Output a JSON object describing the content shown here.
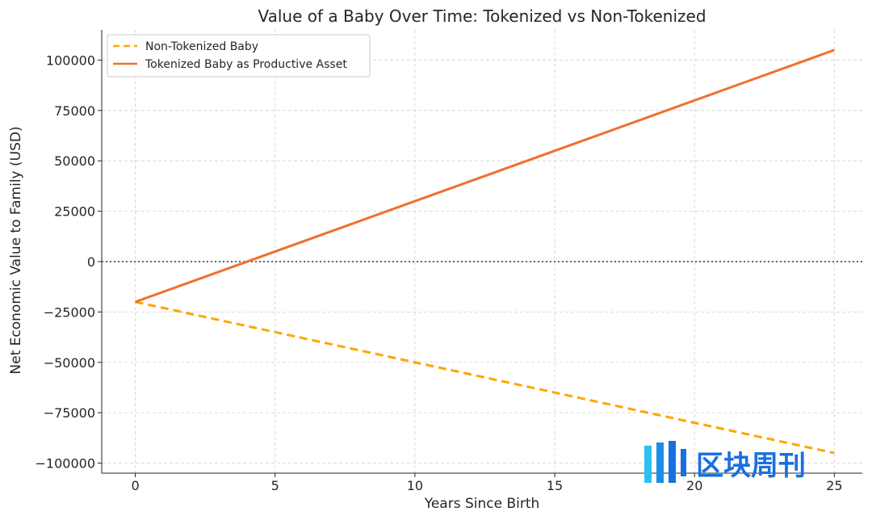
{
  "chart_data": {
    "type": "line",
    "title": "Value of a Baby Over Time: Tokenized vs Non-Tokenized",
    "xlabel": "Years Since Birth",
    "ylabel": "Net Economic Value to Family (USD)",
    "xlim": [
      -1.2,
      26.0
    ],
    "ylim": [
      -105000,
      115000
    ],
    "xticks": [
      0,
      5,
      10,
      15,
      20,
      25
    ],
    "yticks": [
      -100000,
      -75000,
      -50000,
      -25000,
      0,
      25000,
      50000,
      75000,
      100000
    ],
    "grid": true,
    "legend_position": "top-left",
    "reference_line": {
      "y": 0,
      "style": "dotted",
      "color": "#555555"
    },
    "series": [
      {
        "name": "Non-Tokenized Baby",
        "style": "dashed",
        "color": "#FFA500",
        "x": [
          0,
          25
        ],
        "y": [
          -20000,
          -95000
        ]
      },
      {
        "name": "Tokenized Baby as Productive Asset",
        "style": "solid",
        "color": "#F07030",
        "x": [
          0,
          25
        ],
        "y": [
          -20000,
          105000
        ]
      }
    ]
  },
  "watermark": {
    "text": "区块周刊",
    "icon": "bars-logo-icon",
    "color": "#1a6fe0"
  }
}
